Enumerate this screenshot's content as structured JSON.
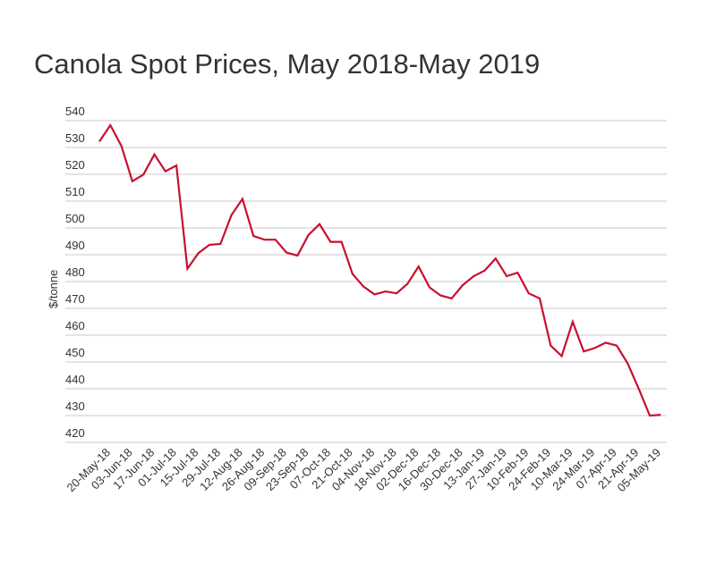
{
  "chart_data": {
    "type": "line",
    "title": "Canola Spot Prices, May 2018-May 2019",
    "xlabel": "",
    "ylabel": "$/tonne",
    "ylim": [
      420,
      540
    ],
    "yticks": [
      420,
      430,
      440,
      450,
      460,
      470,
      480,
      490,
      500,
      510,
      520,
      530,
      540
    ],
    "grid": true,
    "line_color": "#c8102e",
    "x_tick_labels": [
      "20-May-18",
      "03-Jun-18",
      "17-Jun-18",
      "01-Jul-18",
      "15-Jul-18",
      "29-Jul-18",
      "12-Aug-18",
      "26-Aug-18",
      "09-Sep-18",
      "23-Sep-18",
      "07-Oct-18",
      "21-Oct-18",
      "04-Nov-18",
      "18-Nov-18",
      "02-Dec-18",
      "16-Dec-18",
      "30-Dec-18",
      "13-Jan-19",
      "27-Jan-19",
      "10-Feb-19",
      "24-Feb-19",
      "10-Mar-19",
      "24-Mar-19",
      "07-Apr-19",
      "21-Apr-19",
      "05-May-19"
    ],
    "x_tick_every": 2,
    "series": [
      {
        "name": "Canola spot price",
        "values": [
          532.2,
          538.3,
          530.6,
          517.4,
          519.9,
          527.4,
          521.1,
          523.3,
          484.8,
          490.6,
          493.7,
          494.0,
          504.8,
          510.8,
          497.0,
          495.6,
          495.6,
          490.8,
          489.7,
          497.4,
          501.4,
          494.8,
          494.8,
          482.8,
          478.1,
          475.2,
          476.3,
          475.6,
          479.2,
          485.6,
          477.8,
          474.8,
          473.7,
          478.6,
          482.0,
          484.1,
          488.6,
          482.0,
          483.3,
          475.6,
          473.7,
          456.1,
          452.2,
          465.0,
          453.9,
          455.2,
          457.2,
          456.1,
          449.4,
          440.0,
          430.0,
          430.3
        ]
      }
    ]
  }
}
